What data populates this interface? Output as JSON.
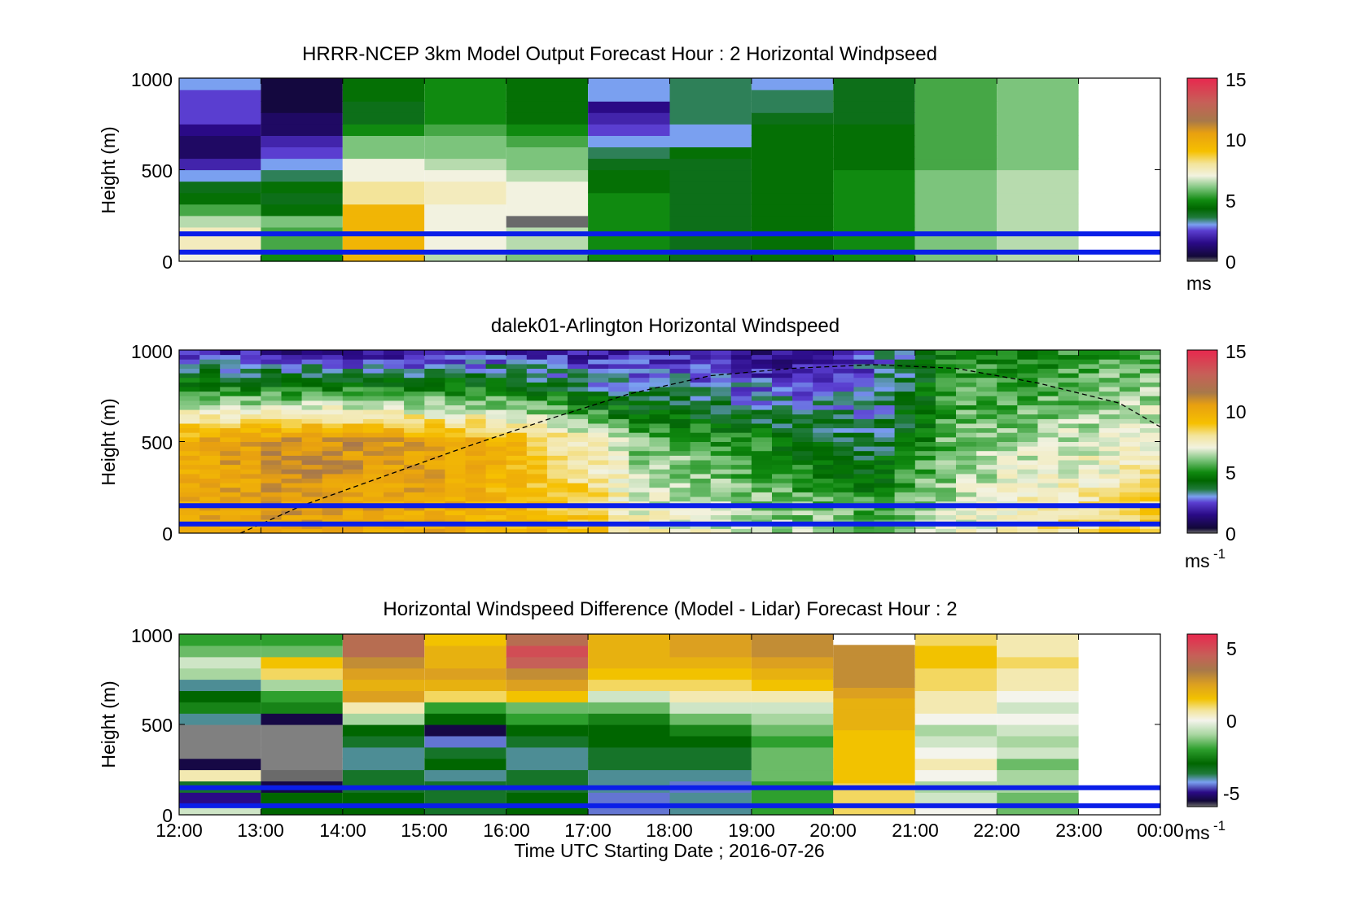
{
  "chart_data": [
    {
      "type": "heatmap",
      "title": "HRRR-NCEP 3km Model Output   Forecast Hour : 2 Horizontal Windpseed",
      "ylabel": "Height (m)",
      "ylim": [
        0,
        1000
      ],
      "yticks": [
        "0",
        "500",
        "1000"
      ],
      "colorbar": {
        "ticks": [
          "0",
          "5",
          "10",
          "15"
        ],
        "range": [
          0,
          15
        ],
        "unit": "ms"
      },
      "reference_lines_m": [
        50,
        150
      ],
      "x_hours": [
        12,
        13,
        14,
        15,
        16,
        17,
        18,
        19,
        20,
        21,
        22,
        23,
        24
      ],
      "columns": [
        {
          "x_start": 12,
          "x_end": 13,
          "bottom_to_top": [
            7,
            7.5,
            7.5,
            6.5,
            5.5,
            4.5,
            4,
            3,
            2,
            1,
            1,
            1.5,
            2.5,
            2.5,
            2.5,
            3
          ]
        },
        {
          "x_start": 13,
          "x_end": 14,
          "bottom_to_top": [
            5,
            5.5,
            5.5,
            6,
            4.5,
            4,
            4.5,
            3.5,
            3,
            2.5,
            2,
            1,
            1,
            0.5,
            0.5,
            0.5
          ]
        },
        {
          "x_start": 14,
          "x_end": 15,
          "bottom_to_top": [
            9.5,
            9.5,
            9.5,
            9.5,
            9.5,
            8,
            8,
            7,
            7,
            6,
            6,
            5,
            4,
            4,
            4.5,
            4.5
          ]
        },
        {
          "x_start": 15,
          "x_end": 16,
          "bottom_to_top": [
            6.5,
            7,
            7,
            7,
            7,
            7.5,
            7.5,
            7,
            6.5,
            6,
            6,
            5.5,
            5,
            5,
            5,
            5
          ]
        },
        {
          "x_start": 16,
          "x_end": 17,
          "bottom_to_top": [
            6,
            6.5,
            6.5,
            0,
            7,
            7,
            7,
            6.5,
            6,
            6,
            5.5,
            5,
            4.5,
            4.5,
            4.5,
            4.5
          ]
        },
        {
          "x_start": 17,
          "x_end": 18,
          "bottom_to_top": [
            5,
            5,
            5,
            5,
            5,
            5,
            4.5,
            4.5,
            4,
            3.5,
            3,
            2.5,
            2,
            1.5,
            3,
            3
          ]
        },
        {
          "x_start": 18,
          "x_end": 19,
          "bottom_to_top": [
            4,
            4,
            4,
            4,
            4,
            4,
            4,
            4,
            4,
            4.5,
            3,
            3,
            3.5,
            3.5,
            3.5,
            3.5
          ]
        },
        {
          "x_start": 19,
          "x_end": 20,
          "bottom_to_top": [
            4.5,
            4.5,
            4.5,
            4.5,
            4.5,
            4.5,
            4.5,
            4.5,
            4.5,
            4.5,
            4.5,
            4.5,
            4,
            3.5,
            3.5,
            3
          ]
        },
        {
          "x_start": 20,
          "x_end": 21,
          "bottom_to_top": [
            5,
            5,
            5,
            5,
            5,
            5,
            5,
            5,
            4.5,
            4.5,
            4.5,
            4.5,
            4,
            4,
            4,
            4
          ]
        },
        {
          "x_start": 21,
          "x_end": 22,
          "bottom_to_top": [
            6,
            6,
            6,
            6,
            6,
            6,
            6,
            6,
            5.5,
            5.5,
            5.5,
            5.5,
            5.5,
            5.5,
            5.5,
            5.5
          ]
        },
        {
          "x_start": 22,
          "x_end": 23,
          "bottom_to_top": [
            6.5,
            6.5,
            6.5,
            6.5,
            6.5,
            6.5,
            6.5,
            6.5,
            6,
            6,
            6,
            6,
            6,
            6,
            6,
            6
          ]
        }
      ]
    },
    {
      "type": "heatmap",
      "title": "dalek01-Arlington  Horizontal Windspeed",
      "ylabel": "Height (m)",
      "ylim": [
        0,
        1000
      ],
      "yticks": [
        "0",
        "500",
        "1000"
      ],
      "colorbar": {
        "ticks": [
          "0",
          "5",
          "10",
          "15"
        ],
        "range": [
          0,
          15
        ],
        "unit": "ms",
        "unit_sup": "-1"
      },
      "reference_lines_m": [
        50,
        150
      ],
      "x_hours": [
        12,
        13,
        14,
        15,
        16,
        17,
        18,
        19,
        20,
        21,
        22,
        23,
        24
      ],
      "profile_line": {
        "style": "dashed",
        "points": [
          [
            12.75,
            0
          ],
          [
            13.5,
            150
          ],
          [
            14.5,
            310
          ],
          [
            15.5,
            470
          ],
          [
            16.5,
            620
          ],
          [
            17.5,
            760
          ],
          [
            18.5,
            860
          ],
          [
            19.5,
            900
          ],
          [
            20.5,
            920
          ],
          [
            21.5,
            900
          ],
          [
            22.5,
            820
          ],
          [
            23.5,
            710
          ],
          [
            24,
            580
          ]
        ]
      },
      "profile_anchors": [
        {
          "x": 12,
          "low": 10,
          "mid": 10,
          "top": 2
        },
        {
          "x": 13.5,
          "low": 10.5,
          "mid": 11,
          "top": 1.5
        },
        {
          "x": 15,
          "low": 10,
          "mid": 10.5,
          "top": 1.5
        },
        {
          "x": 16,
          "low": 9.5,
          "mid": 9.5,
          "top": 2
        },
        {
          "x": 17.2,
          "low": 9,
          "mid": 7,
          "top": 1.5
        },
        {
          "x": 17.6,
          "low": 7.5,
          "mid": 6,
          "top": 2
        },
        {
          "x": 18.5,
          "low": 7,
          "mid": 5.5,
          "top": 1.5
        },
        {
          "x": 19.5,
          "low": 6.5,
          "mid": 4.5,
          "top": 1.5
        },
        {
          "x": 20.5,
          "low": 6,
          "mid": 3.5,
          "top": 2.5
        },
        {
          "x": 21.5,
          "low": 7,
          "mid": 6,
          "top": 5
        },
        {
          "x": 22.5,
          "low": 8,
          "mid": 6.5,
          "top": 5
        },
        {
          "x": 23.5,
          "low": 8.5,
          "mid": 7,
          "top": 5.5
        },
        {
          "x": 24,
          "low": 9,
          "mid": 7.5,
          "top": 5.5
        }
      ]
    },
    {
      "type": "heatmap",
      "title": "Horizontal Windspeed Difference (Model - Lidar) Forecast Hour : 2",
      "ylabel": "Height (m)",
      "xlabel": "Time UTC  Starting Date ; 2016-07-26",
      "ylim": [
        0,
        1000
      ],
      "yticks": [
        "0",
        "500",
        "1000"
      ],
      "xticks": [
        "12:00",
        "13:00",
        "14:00",
        "15:00",
        "16:00",
        "17:00",
        "18:00",
        "19:00",
        "20:00",
        "21:00",
        "22:00",
        "23:00",
        "00:00"
      ],
      "colorbar": {
        "ticks": [
          "-5",
          "0",
          "5"
        ],
        "range": [
          -6,
          6
        ],
        "unit": "ms",
        "unit_sup": "-1"
      },
      "reference_lines_m": [
        50,
        150
      ],
      "x_hours": [
        12,
        13,
        14,
        15,
        16,
        17,
        18,
        19,
        20,
        21,
        22,
        23,
        24
      ],
      "columns": [
        {
          "x_start": 12,
          "x_end": 13,
          "bottom_to_top": [
            -0.5,
            -5,
            -3.5,
            0.5,
            -5.5,
            null,
            null,
            null,
            -4,
            -2.5,
            -3,
            -4,
            -1,
            -0.5,
            -1.5,
            -2
          ],
          "top_m": 1000
        },
        {
          "x_start": 13,
          "x_end": 14,
          "bottom_to_top": [
            -3,
            -3,
            -5.5,
            -6,
            null,
            null,
            null,
            null,
            -5.5,
            -2.5,
            -2,
            -1,
            1,
            1.5,
            -1.5,
            -2
          ],
          "top_m": 1000
        },
        {
          "x_start": 14,
          "x_end": 15,
          "bottom_to_top": [
            -3,
            -3,
            -3.5,
            -3.5,
            -4,
            -4,
            -3.5,
            -3,
            -1,
            0.5,
            2.5,
            2,
            2.5,
            3,
            4,
            4
          ],
          "top_m": 1000
        },
        {
          "x_start": 15,
          "x_end": 16,
          "bottom_to_top": [
            -3.5,
            -3.5,
            -3.5,
            -4,
            -3,
            -3.5,
            -4.5,
            -5.5,
            -3,
            -2,
            1,
            2,
            2.5,
            2,
            2,
            1.5
          ],
          "top_m": 1000
        },
        {
          "x_start": 16,
          "x_end": 17,
          "bottom_to_top": [
            -3,
            -3,
            -3.5,
            -3.5,
            -4,
            -4,
            -3.5,
            -3,
            -2,
            -1.5,
            1.5,
            2.5,
            3,
            4.5,
            5,
            4
          ],
          "top_m": 1000
        },
        {
          "x_start": 17,
          "x_end": 18,
          "bottom_to_top": [
            -4.5,
            -4.5,
            -4,
            -4,
            -3.5,
            -3.5,
            -3,
            -3,
            -2.5,
            -1.5,
            -0.5,
            1,
            1.5,
            2,
            2,
            2
          ],
          "top_m": 1000
        },
        {
          "x_start": 18,
          "x_end": 19,
          "bottom_to_top": [
            -4,
            -4,
            -4.5,
            -4,
            -3.5,
            -3.5,
            -3,
            -2.5,
            -1.5,
            -0.5,
            0.5,
            1,
            1.5,
            2,
            2.5,
            2.5
          ],
          "top_m": 1000
        },
        {
          "x_start": 19,
          "x_end": 20,
          "bottom_to_top": [
            -2,
            -2,
            -2,
            -1.5,
            -1.5,
            -1.5,
            -2,
            -1.5,
            -1,
            -0.5,
            0.5,
            1.5,
            2,
            2.5,
            3,
            3
          ],
          "top_m": 1000
        },
        {
          "x_start": 20,
          "x_end": 21,
          "bottom_to_top": [
            1,
            1,
            1,
            1.5,
            1.5,
            1.5,
            1.5,
            1.5,
            2,
            2,
            2,
            2.5,
            3,
            3,
            3,
            3
          ],
          "top_m": 940
        },
        {
          "x_start": 21,
          "x_end": 22,
          "bottom_to_top": [
            0,
            -0.5,
            -1,
            0,
            0.5,
            0,
            -0.5,
            -1,
            0,
            0.5,
            0.5,
            1,
            1,
            1.5,
            1.5,
            1
          ],
          "top_m": 1000
        },
        {
          "x_start": 22,
          "x_end": 23,
          "bottom_to_top": [
            -1.5,
            -1.5,
            -1,
            -1,
            -1.5,
            -0.5,
            -1,
            -0.5,
            0,
            -0.5,
            0,
            0.5,
            0.5,
            1,
            0.5,
            0.5
          ],
          "top_m": 1000
        }
      ]
    }
  ]
}
